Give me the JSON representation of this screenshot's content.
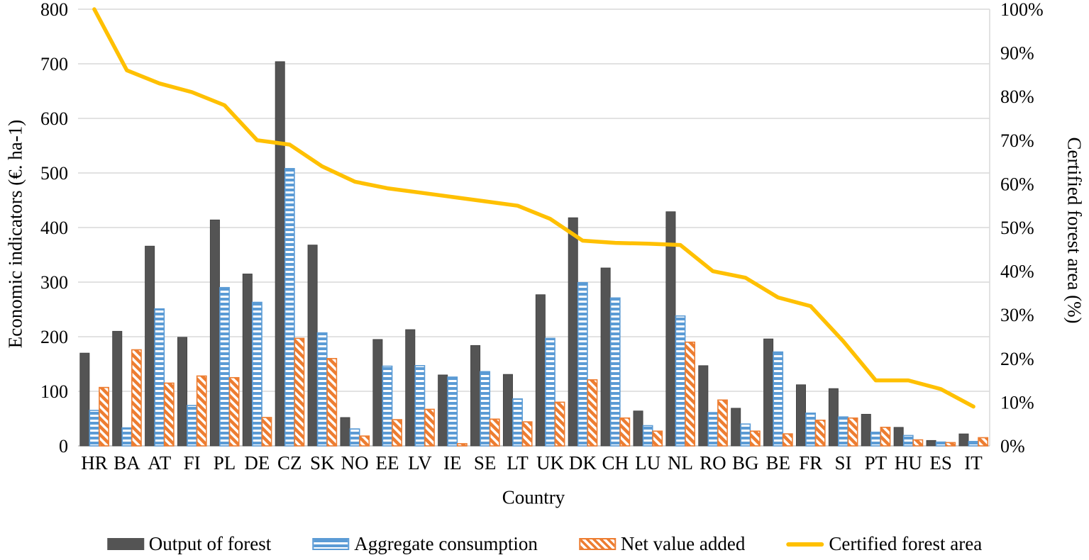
{
  "chart_data": {
    "type": "combo-bar-line",
    "xlabel": "Country",
    "categories": [
      "HR",
      "BA",
      "AT",
      "FI",
      "PL",
      "DE",
      "CZ",
      "SK",
      "NO",
      "EE",
      "LV",
      "IE",
      "SE",
      "LT",
      "UK",
      "DK",
      "CH",
      "LU",
      "NL",
      "RO",
      "BG",
      "BE",
      "FR",
      "SI",
      "PT",
      "HU",
      "ES",
      "IT"
    ],
    "series": [
      {
        "name": "Output of forest",
        "type": "bar",
        "axis": "left",
        "style": "solid-dark-gray",
        "values": [
          170,
          210,
          366,
          199,
          414,
          315,
          704,
          368,
          52,
          195,
          213,
          130,
          184,
          131,
          277,
          418,
          326,
          64,
          429,
          147,
          69,
          196,
          112,
          105,
          58,
          34,
          10,
          22
        ]
      },
      {
        "name": "Aggregate consumption",
        "type": "bar",
        "axis": "left",
        "style": "blue-horizontal-stripes",
        "values": [
          65,
          33,
          251,
          74,
          290,
          263,
          508,
          207,
          31,
          146,
          147,
          126,
          136,
          86,
          197,
          299,
          271,
          37,
          238,
          61,
          40,
          172,
          60,
          53,
          25,
          19,
          7,
          8
        ]
      },
      {
        "name": "Net value added",
        "type": "bar",
        "axis": "left",
        "style": "orange-diagonal-stripes",
        "values": [
          107,
          176,
          115,
          128,
          125,
          52,
          197,
          160,
          18,
          48,
          67,
          4,
          49,
          44,
          80,
          121,
          51,
          27,
          190,
          84,
          27,
          22,
          47,
          51,
          34,
          11,
          6,
          15
        ]
      },
      {
        "name": "Certified forest area",
        "type": "line",
        "axis": "right",
        "values": [
          100,
          86,
          83,
          81,
          78,
          70,
          69,
          64,
          60.5,
          59,
          58,
          57,
          56,
          55,
          52,
          47,
          46.5,
          46.3,
          46,
          40,
          38.5,
          34,
          32,
          24,
          15,
          15,
          13,
          9
        ]
      }
    ],
    "left_axis": {
      "label": "Economic indicators (€. ha-1)",
      "min": 0,
      "max": 800,
      "step": 100,
      "ticks": [
        "800",
        "700",
        "600",
        "500",
        "400",
        "300",
        "200",
        "100",
        "0"
      ]
    },
    "right_axis": {
      "label": "Certified forest area (%)",
      "min": 0,
      "max": 100,
      "step": 10,
      "ticks": [
        "100%",
        "90%",
        "80%",
        "70%",
        "60%",
        "50%",
        "40%",
        "30%",
        "20%",
        "10%",
        "0%"
      ]
    },
    "grid": "horizontal",
    "legend_position": "bottom"
  },
  "colors": {
    "dark_bar": "#545454",
    "blue_bar": "#5B9BD5",
    "orange_bar": "#ED7D31",
    "line": "#FFC000",
    "gridline": "#D9D9D9",
    "axis_line": "#BFBFBF",
    "text": "#000000",
    "background": "#FFFFFF"
  }
}
